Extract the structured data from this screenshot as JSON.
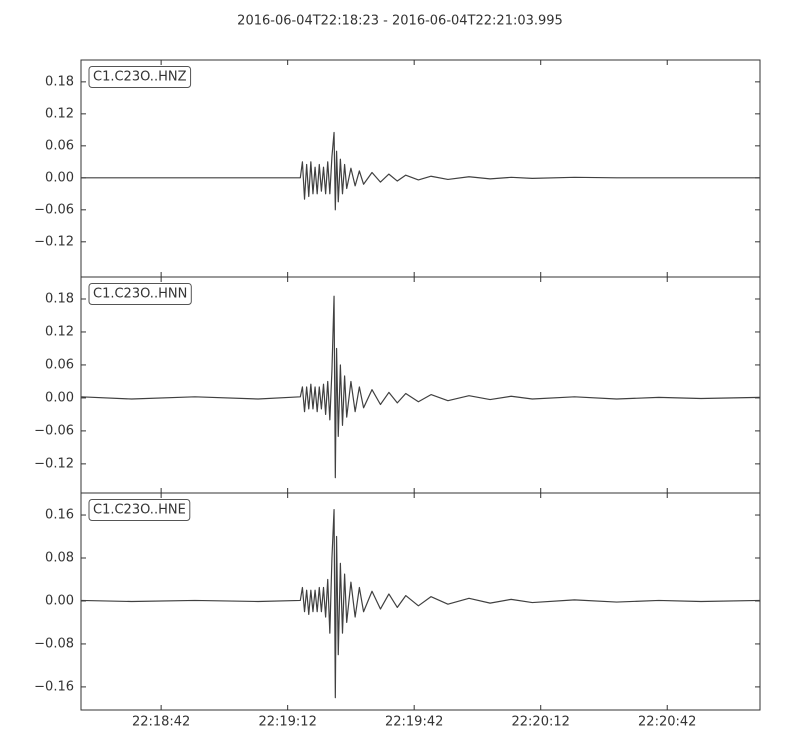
{
  "title": "2016-06-04T22:18:23  -  2016-06-04T22:21:03.995",
  "chart_data": [
    {
      "type": "line",
      "label": "C1.C23O..HNZ",
      "color": "#404040",
      "xlim": [
        23,
        183.995
      ],
      "ylim": [
        -0.186,
        0.221
      ],
      "yticks": [
        {
          "value": -0.12,
          "label": "−0.12"
        },
        {
          "value": -0.06,
          "label": "−0.06"
        },
        {
          "value": 0,
          "label": "0.00"
        },
        {
          "value": 0.06,
          "label": "0.06"
        },
        {
          "value": 0.12,
          "label": "0.12"
        },
        {
          "value": 0.18,
          "label": "0.18"
        }
      ],
      "x": [
        23,
        35,
        50,
        65,
        75,
        75.5,
        76,
        76.5,
        77,
        77.5,
        78,
        78.5,
        79,
        79.5,
        80,
        80.5,
        81,
        81.5,
        82,
        82.5,
        83,
        83.3,
        83.6,
        84,
        84.5,
        85,
        85.5,
        86,
        87,
        88,
        89,
        90,
        92,
        94,
        96,
        98,
        100,
        103,
        106,
        110,
        115,
        120,
        125,
        130,
        140,
        150,
        160,
        170,
        184
      ],
      "values": [
        0,
        0,
        0,
        0,
        0,
        0.03,
        -0.04,
        0.025,
        -0.035,
        0.03,
        -0.03,
        0.02,
        -0.03,
        0.025,
        -0.025,
        0.02,
        -0.03,
        0.03,
        -0.03,
        0.04,
        0.085,
        -0.06,
        0.05,
        -0.045,
        0.035,
        -0.03,
        0.025,
        -0.02,
        0.018,
        -0.015,
        0.013,
        -0.012,
        0.01,
        -0.008,
        0.007,
        -0.006,
        0.005,
        -0.004,
        0.003,
        -0.003,
        0.002,
        -0.002,
        0.001,
        -0.001,
        0.001,
        0,
        0,
        0,
        0
      ]
    },
    {
      "type": "line",
      "label": "C1.C23O..HNN",
      "color": "#404040",
      "xlim": [
        23,
        183.995
      ],
      "ylim": [
        -0.173,
        0.22
      ],
      "yticks": [
        {
          "value": -0.12,
          "label": "−0.12"
        },
        {
          "value": -0.06,
          "label": "−0.06"
        },
        {
          "value": 0,
          "label": "0.00"
        },
        {
          "value": 0.06,
          "label": "0.06"
        },
        {
          "value": 0.12,
          "label": "0.12"
        },
        {
          "value": 0.18,
          "label": "0.18"
        }
      ],
      "x": [
        23,
        35,
        50,
        65,
        75,
        75.5,
        76,
        76.5,
        77,
        77.5,
        78,
        78.5,
        79,
        79.5,
        80,
        80.5,
        81,
        81.5,
        82,
        82.5,
        83,
        83.3,
        83.6,
        84,
        84.5,
        85,
        85.5,
        86,
        87,
        88,
        89,
        90,
        92,
        94,
        96,
        98,
        100,
        103,
        106,
        110,
        115,
        120,
        125,
        130,
        140,
        150,
        160,
        170,
        184
      ],
      "values": [
        0.002,
        -0.002,
        0.002,
        -0.002,
        0.002,
        0.02,
        -0.025,
        0.02,
        -0.02,
        0.025,
        -0.02,
        0.02,
        -0.025,
        0.02,
        -0.02,
        0.025,
        -0.03,
        0.03,
        -0.04,
        0.05,
        0.185,
        -0.145,
        0.09,
        -0.07,
        0.06,
        -0.05,
        0.04,
        -0.035,
        0.03,
        -0.025,
        0.02,
        -0.018,
        0.015,
        -0.012,
        0.01,
        -0.009,
        0.008,
        -0.007,
        0.006,
        -0.005,
        0.004,
        -0.003,
        0.003,
        -0.002,
        0.002,
        -0.002,
        0.001,
        -0.001,
        0.001
      ]
    },
    {
      "type": "line",
      "label": "C1.C23O..HNE",
      "color": "#404040",
      "xlim": [
        23,
        183.995
      ],
      "ylim": [
        -0.203,
        0.201
      ],
      "yticks": [
        {
          "value": -0.16,
          "label": "−0.16"
        },
        {
          "value": -0.08,
          "label": "−0.08"
        },
        {
          "value": 0,
          "label": "0.00"
        },
        {
          "value": 0.08,
          "label": "0.08"
        },
        {
          "value": 0.16,
          "label": "0.16"
        }
      ],
      "xticks": [
        {
          "value": 42,
          "label": "22:18:42"
        },
        {
          "value": 72,
          "label": "22:19:12"
        },
        {
          "value": 102,
          "label": "22:19:42"
        },
        {
          "value": 132,
          "label": "22:20:12"
        },
        {
          "value": 162,
          "label": "22:20:42"
        }
      ],
      "x": [
        23,
        35,
        50,
        65,
        75,
        75.5,
        76,
        76.5,
        77,
        77.5,
        78,
        78.5,
        79,
        79.5,
        80,
        80.5,
        81,
        81.5,
        82,
        82.5,
        83,
        83.3,
        83.6,
        84,
        84.5,
        85,
        85.5,
        86,
        87,
        88,
        89,
        90,
        92,
        94,
        96,
        98,
        100,
        103,
        106,
        110,
        115,
        120,
        125,
        130,
        140,
        150,
        160,
        170,
        184
      ],
      "values": [
        0.001,
        -0.001,
        0.001,
        -0.001,
        0.001,
        0.025,
        -0.02,
        0.02,
        -0.025,
        0.02,
        -0.02,
        0.02,
        -0.02,
        0.025,
        -0.02,
        0.025,
        -0.03,
        0.04,
        -0.06,
        0.08,
        0.17,
        -0.18,
        0.12,
        -0.1,
        0.07,
        -0.06,
        0.05,
        -0.04,
        0.035,
        -0.03,
        0.025,
        -0.02,
        0.018,
        -0.015,
        0.013,
        -0.012,
        0.01,
        -0.009,
        0.008,
        -0.006,
        0.005,
        -0.004,
        0.003,
        -0.003,
        0.002,
        -0.002,
        0.001,
        -0.001,
        0.001
      ]
    }
  ]
}
